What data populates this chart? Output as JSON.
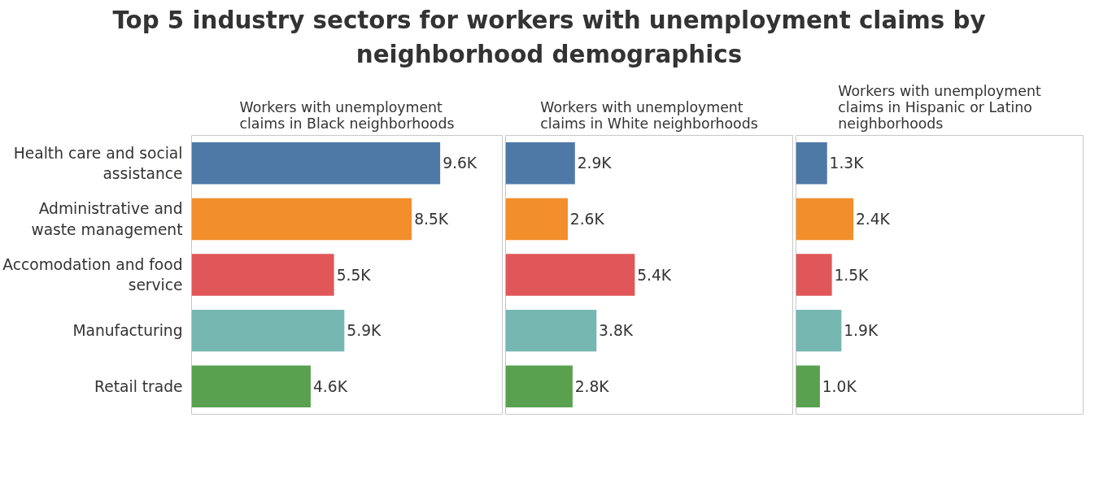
{
  "chart_data": [
    {
      "type": "bar",
      "orientation": "horizontal",
      "title": "Top 5 industry sectors for workers with unemployment claims by neighborhood demographics",
      "subtitle": "Workers with unemployment claims in Black neighborhoods",
      "categories": [
        "Health care and social assistance",
        "Administrative and waste management",
        "Accomodation and food service",
        "Manufacturing",
        "Retail trade"
      ],
      "values": [
        9600,
        8500,
        5500,
        5900,
        4600
      ],
      "value_labels": [
        "9.6K",
        "8.5K",
        "5.5K",
        "5.9K",
        "4.6K"
      ],
      "colors": [
        "#4e79a7",
        "#f28e2b",
        "#e15759",
        "#76b7b2",
        "#59a14f"
      ],
      "xlim": [
        0,
        12000
      ],
      "tick_labels": "y",
      "grid": false,
      "legend": false
    },
    {
      "type": "bar",
      "orientation": "horizontal",
      "subtitle": "Workers with unemployment claims in White neighborhoods",
      "categories": [
        "Health care and social assistance",
        "Administrative and waste management",
        "Accomodation and food service",
        "Manufacturing",
        "Retail trade"
      ],
      "values": [
        2900,
        2600,
        5400,
        3800,
        2800
      ],
      "value_labels": [
        "2.9K",
        "2.6K",
        "5.4K",
        "3.8K",
        "2.8K"
      ],
      "colors": [
        "#4e79a7",
        "#f28e2b",
        "#e15759",
        "#76b7b2",
        "#59a14f"
      ],
      "xlim": [
        0,
        12000
      ],
      "tick_labels": false,
      "grid": false,
      "legend": false
    },
    {
      "type": "bar",
      "orientation": "horizontal",
      "subtitle": "Workers with unemployment claims in Hispanic or Latino neighborhoods",
      "categories": [
        "Health care and social assistance",
        "Administrative and waste management",
        "Accomodation and food service",
        "Manufacturing",
        "Retail trade"
      ],
      "values": [
        1300,
        2400,
        1500,
        1900,
        1000
      ],
      "value_labels": [
        "1.3K",
        "2.4K",
        "1.5K",
        "1.9K",
        "1.0K"
      ],
      "colors": [
        "#4e79a7",
        "#f28e2b",
        "#e15759",
        "#76b7b2",
        "#59a14f"
      ],
      "xlim": [
        0,
        12000
      ],
      "tick_labels": false,
      "grid": false,
      "legend": false
    }
  ]
}
